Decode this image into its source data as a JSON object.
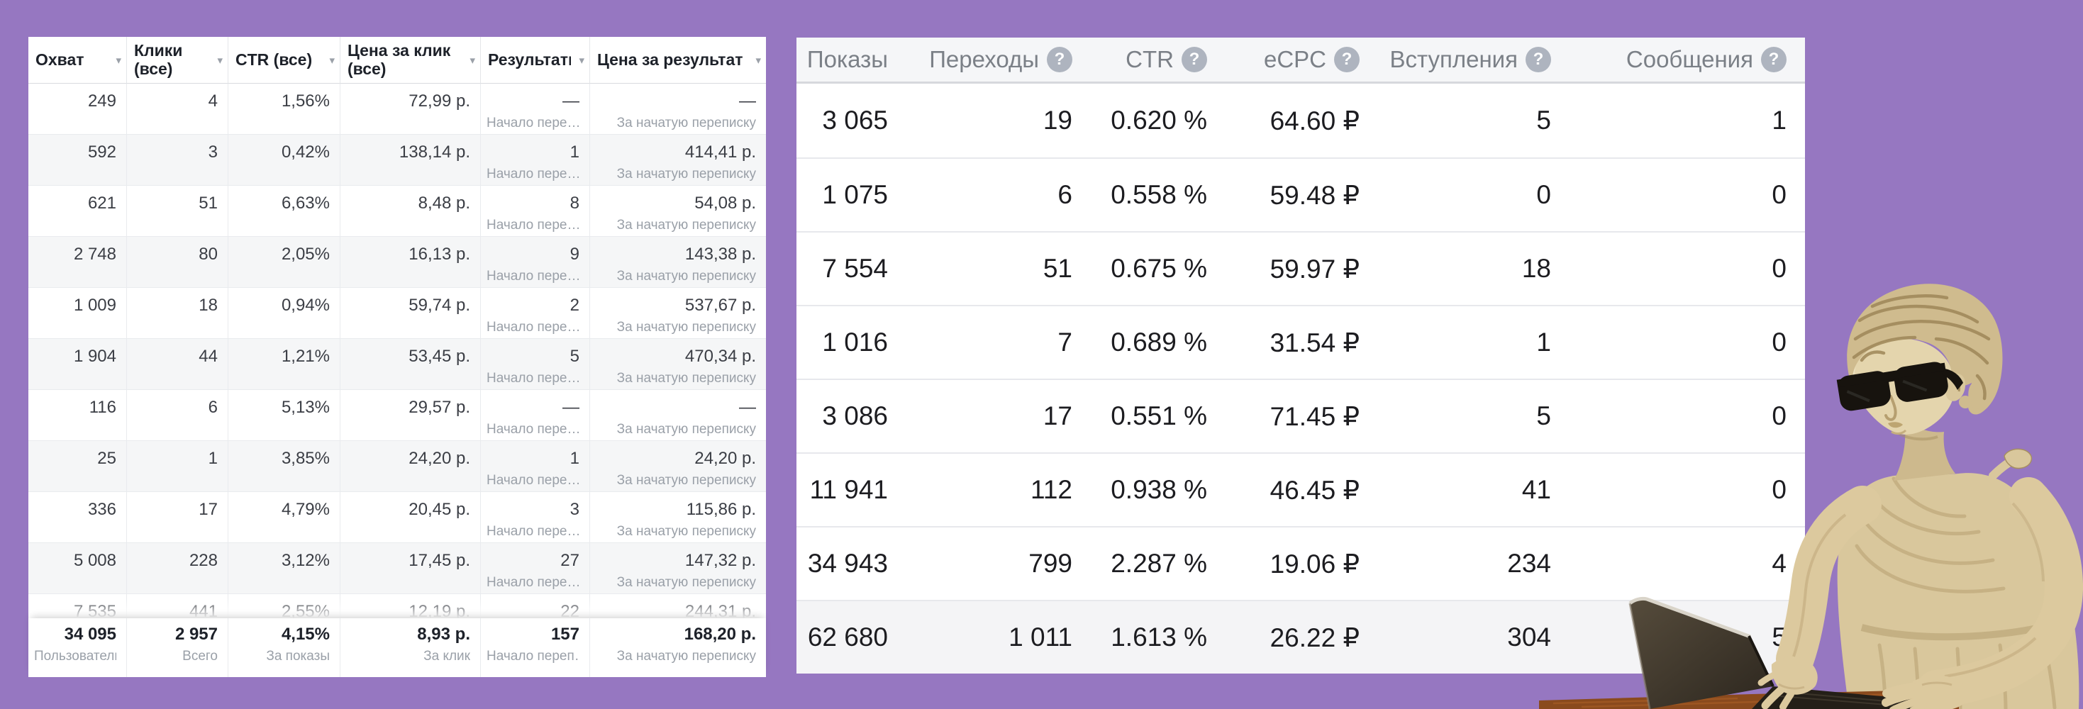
{
  "background_color": "#9677C1",
  "left_table": {
    "columns": [
      {
        "key": "okhvat",
        "label": "Охват"
      },
      {
        "key": "kliki",
        "label": "Клики (все)"
      },
      {
        "key": "ctr",
        "label": "CTR (все)"
      },
      {
        "key": "cena_za_klik",
        "label": "Цена за клик (все)"
      },
      {
        "key": "rezultaty",
        "label": "Результаты"
      },
      {
        "key": "cena_za_rezultat",
        "label": "Цена за результат"
      }
    ],
    "sort_caret_icon": "▾",
    "row_sublabels": [
      "Начало пере…",
      "За начатую переписку"
    ],
    "rows": [
      [
        "249",
        "4",
        "1,56%",
        "72,99 р.",
        "—",
        "—"
      ],
      [
        "592",
        "3",
        "0,42%",
        "138,14 р.",
        "1",
        "414,41 р."
      ],
      [
        "621",
        "51",
        "6,63%",
        "8,48 р.",
        "8",
        "54,08 р."
      ],
      [
        "2 748",
        "80",
        "2,05%",
        "16,13 р.",
        "9",
        "143,38 р."
      ],
      [
        "1 009",
        "18",
        "0,94%",
        "59,74 р.",
        "2",
        "537,67 р."
      ],
      [
        "1 904",
        "44",
        "1,21%",
        "53,45 р.",
        "5",
        "470,34 р."
      ],
      [
        "116",
        "6",
        "5,13%",
        "29,57 р.",
        "—",
        "—"
      ],
      [
        "25",
        "1",
        "3,85%",
        "24,20 р.",
        "1",
        "24,20 р."
      ],
      [
        "336",
        "17",
        "4,79%",
        "20,45 р.",
        "3",
        "115,86 р."
      ],
      [
        "5 008",
        "228",
        "3,12%",
        "17,45 р.",
        "27",
        "147,32 р."
      ],
      [
        "7 535",
        "441",
        "2,55%",
        "12,19 р.",
        "22",
        "244,31 р."
      ]
    ],
    "totals": {
      "values": [
        "34 095",
        "2 957",
        "4,15%",
        "8,93 р.",
        "157",
        "168,20 р."
      ],
      "sublabels": [
        "Пользователи",
        "Всего",
        "За показы",
        "За клик",
        "Начало переп…",
        "За начатую переписку"
      ],
      "sub_align": [
        "left",
        "right",
        "right",
        "right",
        "left",
        "right"
      ]
    }
  },
  "right_table": {
    "columns": [
      {
        "key": "pokazy",
        "label": "Показы",
        "help": false
      },
      {
        "key": "perehody",
        "label": "Переходы",
        "help": true
      },
      {
        "key": "ctr",
        "label": "CTR",
        "help": true
      },
      {
        "key": "ecpc",
        "label": "eCPC",
        "help": true
      },
      {
        "key": "vstupleniya",
        "label": "Вступления",
        "help": true
      },
      {
        "key": "soobshcheniya",
        "label": "Сообщения",
        "help": true
      }
    ],
    "help_icon": "?",
    "rows": [
      [
        "3 065",
        "19",
        "0.620 %",
        "64.60 ₽",
        "5",
        "1"
      ],
      [
        "1 075",
        "6",
        "0.558 %",
        "59.48 ₽",
        "0",
        "0"
      ],
      [
        "7 554",
        "51",
        "0.675 %",
        "59.97 ₽",
        "18",
        "0"
      ],
      [
        "1 016",
        "7",
        "0.689 %",
        "31.54 ₽",
        "1",
        "0"
      ],
      [
        "3 086",
        "17",
        "0.551 %",
        "71.45 ₽",
        "5",
        "0"
      ],
      [
        "11 941",
        "112",
        "0.938 %",
        "46.45 ₽",
        "41",
        "0"
      ],
      [
        "34 943",
        "799",
        "2.287 %",
        "19.06 ₽",
        "234",
        "4"
      ]
    ],
    "totals_row": [
      "62 680",
      "1 011",
      "1.613 %",
      "26.22 ₽",
      "304",
      "5"
    ]
  },
  "illustration": {
    "description": "classical-statue-with-sunglasses-typing-on-laptop",
    "stone_color": "#D9C79C",
    "sunglasses_color": "#17130E",
    "laptop_color": "#3B342A",
    "table_wood_color": "#8A4A1D"
  }
}
